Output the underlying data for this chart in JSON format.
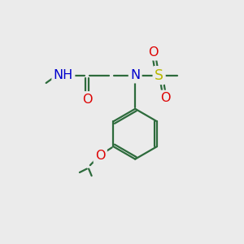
{
  "bg_color": "#ebebeb",
  "bond_color": "#2d6b3c",
  "atom_colors": {
    "N": "#0000cc",
    "O": "#dd0000",
    "S": "#b8b800",
    "H": "#4a7a5a",
    "C": "#2d6b3c"
  },
  "font_size_atom": 11.5,
  "lw": 1.6
}
